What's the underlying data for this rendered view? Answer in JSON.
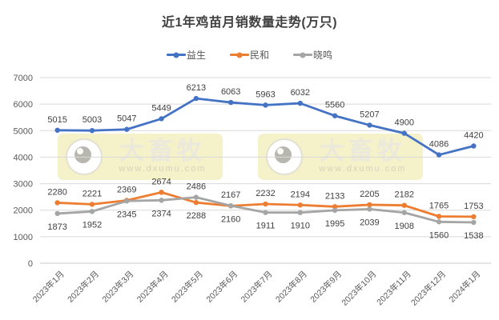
{
  "title": "近1年鸡苗月销数量走势(万只)",
  "watermark": {
    "brand": "大畜牧",
    "url": "www.dxumu.com"
  },
  "chart_data": {
    "type": "line",
    "title": "近1年鸡苗月销数量走势(万只)",
    "xlabel": "",
    "ylabel": "",
    "categories": [
      "2023年1月",
      "2023年2月",
      "2023年3月",
      "2023年4月",
      "2023年5月",
      "2023年6月",
      "2023年7月",
      "2023年8月",
      "2023年9月",
      "2023年10月",
      "2023年11月",
      "2023年12月",
      "2024年1月"
    ],
    "series": [
      {
        "name": "益生",
        "color": "#4472C4",
        "values": [
          5015,
          5003,
          5047,
          5449,
          6213,
          6063,
          5963,
          6032,
          5560,
          5207,
          4900,
          4086,
          4420
        ]
      },
      {
        "name": "民和",
        "color": "#ED7D31",
        "values": [
          2280,
          2221,
          2369,
          2674,
          2288,
          2160,
          2232,
          2194,
          2133,
          2205,
          2182,
          1765,
          1753
        ]
      },
      {
        "name": "晓鸣",
        "color": "#A5A5A5",
        "values": [
          1873,
          1952,
          2345,
          2374,
          2486,
          2167,
          1911,
          1910,
          1995,
          2039,
          1908,
          1560,
          1538
        ]
      }
    ],
    "ylim": [
      0,
      7000
    ],
    "ytick_step": 1000,
    "ytick_labels": [
      "0",
      "1000",
      "2000",
      "3000",
      "4000",
      "5000",
      "6000",
      "7000"
    ],
    "grid": true,
    "legend_position": "top",
    "data_labels": true
  },
  "colors": {
    "grid": "#d9d9d9",
    "axis_text": "#595959",
    "data_label": "#404040",
    "watermark_bg": "#f5f1c9"
  }
}
